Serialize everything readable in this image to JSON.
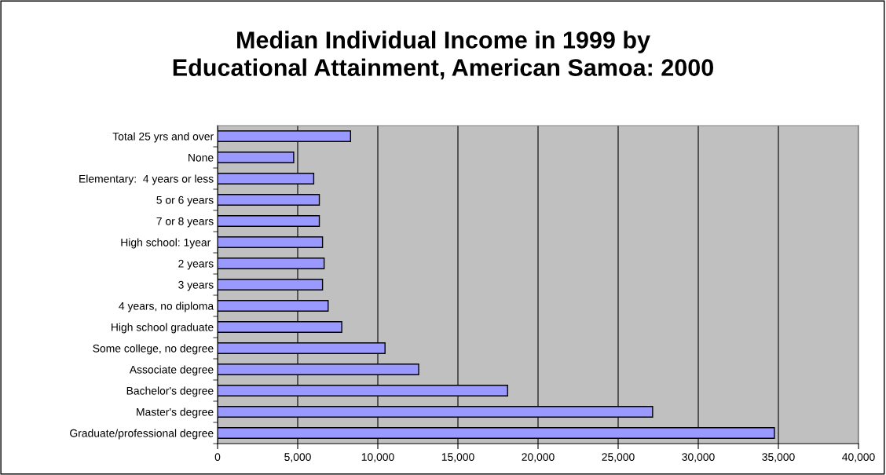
{
  "chart_data": {
    "type": "bar",
    "orientation": "horizontal",
    "title": "Median Individual Income in 1999 by\nEducational Attainment, American Samoa: 2000",
    "categories": [
      "Total 25 yrs and over",
      "None",
      "Elementary:  4 years or less",
      "5 or 6 years",
      "7 or 8 years",
      "High school: 1year ",
      "2 years",
      "3 years",
      "4 years, no diploma",
      "High school graduate",
      "Some college, no degree",
      "Associate degree",
      "Bachelor's degree",
      "Master's degree",
      "Graduate/professional degree"
    ],
    "values": [
      8300,
      4750,
      6000,
      6350,
      6350,
      6550,
      6650,
      6550,
      6900,
      7750,
      10450,
      12550,
      18100,
      27150,
      34750
    ],
    "color": "#9999ff",
    "xlim": [
      0,
      40000
    ],
    "xticks": [
      {
        "value": 0,
        "label": "0"
      },
      {
        "value": 5000,
        "label": "5,000"
      },
      {
        "value": 10000,
        "label": "10,000"
      },
      {
        "value": 15000,
        "label": "15,000"
      },
      {
        "value": 20000,
        "label": "20,000"
      },
      {
        "value": 25000,
        "label": "25,000"
      },
      {
        "value": 30000,
        "label": "30,000"
      },
      {
        "value": 35000,
        "label": "35,000"
      },
      {
        "value": 40000,
        "label": "40,000"
      }
    ],
    "grid": "x"
  }
}
